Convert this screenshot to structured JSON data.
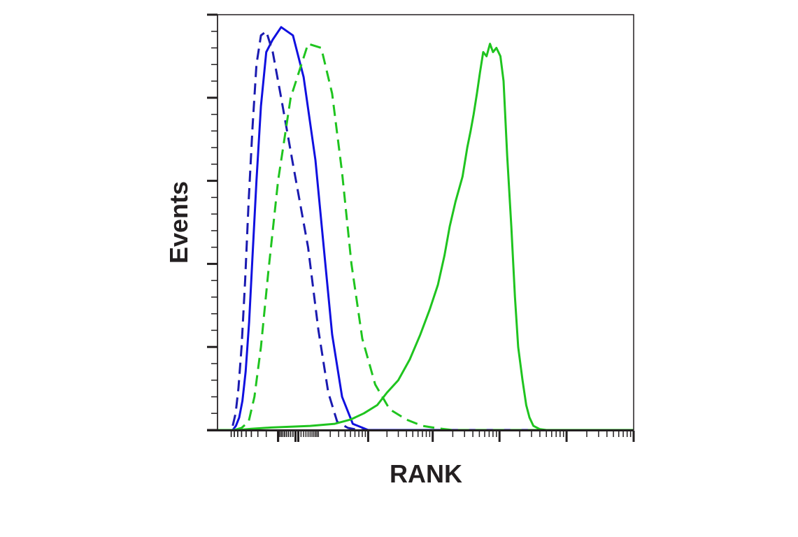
{
  "chart_data": {
    "type": "line",
    "title": "",
    "xlabel": "RANK",
    "ylabel": "Events",
    "xscale": "log",
    "xlim": [
      -150,
      1000000
    ],
    "ylim": [
      0,
      100
    ],
    "grid": false,
    "legend": "none",
    "series": [
      {
        "color": "#1010e0",
        "style": "solid",
        "x": [
          -150,
          -85,
          -75,
          -66,
          -58,
          -51,
          -44,
          -38,
          -32,
          -26,
          -20,
          -14,
          -8,
          -2,
          2,
          8,
          14,
          22,
          35,
          55,
          100,
          1000000
        ],
        "y": [
          0,
          0,
          1,
          3,
          7,
          14,
          26,
          42,
          60,
          78,
          91,
          94,
          97,
          95,
          85,
          65,
          44,
          23,
          8,
          1.5,
          0,
          0
        ]
      },
      {
        "color": "#1a1ab0",
        "style": "dashed",
        "x": [
          -150,
          -95,
          -85,
          -76,
          -68,
          -60,
          -52,
          -45,
          -38,
          -32,
          -26,
          -20,
          -14,
          -8,
          -2,
          4,
          10,
          18,
          28,
          45,
          70,
          1000000
        ],
        "y": [
          0,
          0,
          1,
          4,
          10,
          20,
          36,
          55,
          73,
          88,
          95,
          96,
          91,
          80,
          64,
          44,
          24,
          9,
          2,
          0.5,
          0,
          0
        ]
      },
      {
        "color": "#1fc41f",
        "style": "solid",
        "x": [
          -150,
          -70,
          -40,
          -15,
          5,
          25,
          50,
          85,
          140,
          200,
          300,
          450,
          650,
          900,
          1200,
          1500,
          1800,
          2200,
          2800,
          3300,
          3700,
          4100,
          4600,
          5100,
          5700,
          6400,
          7200,
          8000,
          9000,
          10300,
          11500,
          13000,
          15000,
          17000,
          19000,
          22000,
          25000,
          28000,
          32000,
          40000,
          50000,
          1000000
        ],
        "y": [
          0,
          0,
          0.3,
          0.6,
          1,
          1.5,
          2.5,
          4,
          6,
          9,
          12,
          17,
          23,
          29,
          35,
          42,
          49,
          55,
          61,
          68,
          72,
          76,
          81,
          86,
          91,
          90,
          93,
          91,
          92,
          90,
          84,
          66,
          49,
          32,
          20,
          12,
          6,
          3,
          1,
          0.2,
          0,
          0
        ]
      },
      {
        "color": "#1fc41f",
        "style": "dashed",
        "x": [
          -150,
          -80,
          -60,
          -45,
          -35,
          -26,
          -18,
          -10,
          -3,
          4,
          12,
          22,
          35,
          52,
          80,
          130,
          220,
          400,
          700,
          1200,
          2000,
          4000,
          1000000
        ],
        "y": [
          0,
          0,
          0.5,
          2,
          8,
          20,
          38,
          60,
          80,
          93,
          92,
          81,
          62,
          40,
          22,
          11,
          5,
          2.5,
          1,
          0.4,
          0,
          0,
          0
        ]
      }
    ]
  }
}
